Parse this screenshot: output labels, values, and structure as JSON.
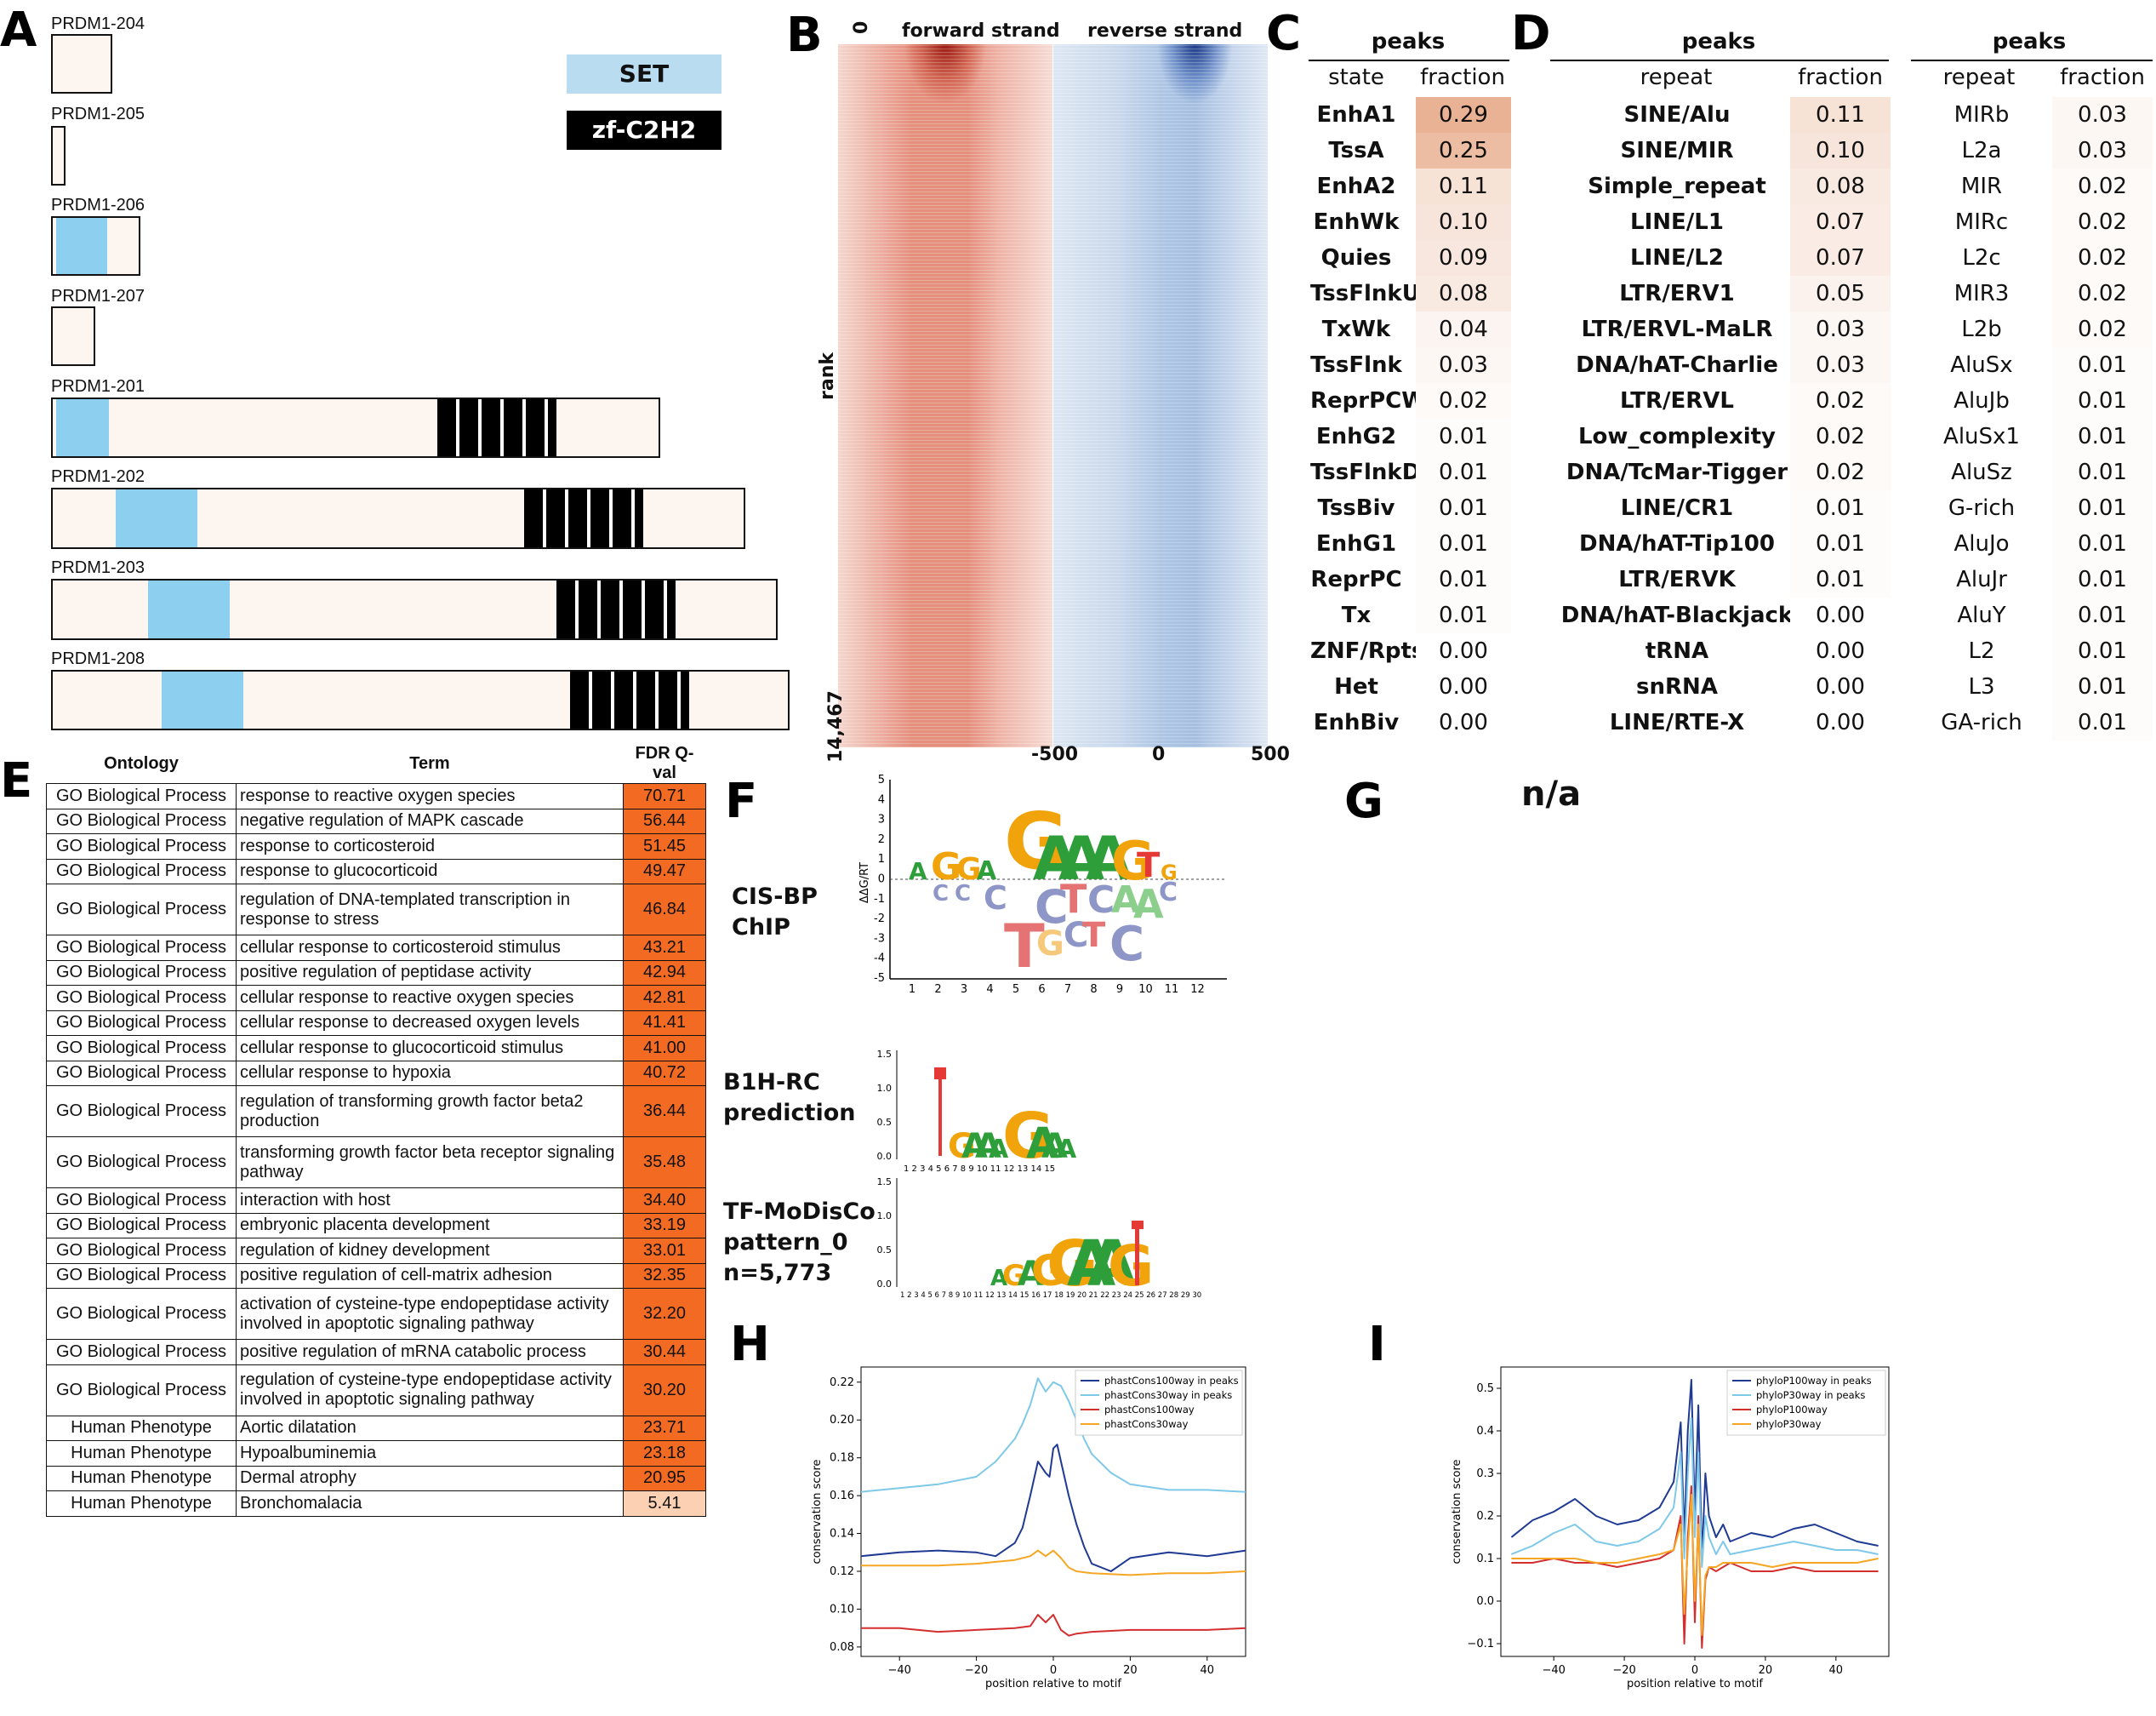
{
  "panels": {
    "a": "A",
    "b": "B",
    "c": "C",
    "d": "D",
    "e": "E",
    "f": "F",
    "g": "G",
    "h": "H",
    "i": "I"
  },
  "panel_a": {
    "legend": {
      "set": "SET",
      "zf": "zf-C2H2"
    },
    "colors": {
      "set": "#8ccfee",
      "zf": "#000000",
      "protein": "#fdf5f0"
    },
    "isoforms": [
      {
        "name": "PRDM1-204"
      },
      {
        "name": "PRDM1-205"
      },
      {
        "name": "PRDM1-206"
      },
      {
        "name": "PRDM1-207"
      },
      {
        "name": "PRDM1-201"
      },
      {
        "name": "PRDM1-202"
      },
      {
        "name": "PRDM1-203"
      },
      {
        "name": "PRDM1-208"
      }
    ]
  },
  "panel_b": {
    "forward": "forward strand",
    "reverse": "reverse strand",
    "ylabel": "rank",
    "ytop": "0",
    "ybottom": "14,467",
    "xticks": [
      "-500",
      "0",
      "500"
    ],
    "colors": {
      "forward": "#c0392b",
      "reverse": "#1f4e9c"
    }
  },
  "panel_c": {
    "title": "peaks",
    "col1": "state",
    "col2": "fraction",
    "rows": [
      {
        "label": "EnhA1",
        "value": "0.29"
      },
      {
        "label": "TssA",
        "value": "0.25"
      },
      {
        "label": "EnhA2",
        "value": "0.11"
      },
      {
        "label": "EnhWk",
        "value": "0.10"
      },
      {
        "label": "Quies",
        "value": "0.09"
      },
      {
        "label": "TssFlnkU",
        "value": "0.08"
      },
      {
        "label": "TxWk",
        "value": "0.04"
      },
      {
        "label": "TssFlnk",
        "value": "0.03"
      },
      {
        "label": "ReprPCWk",
        "value": "0.02"
      },
      {
        "label": "EnhG2",
        "value": "0.01"
      },
      {
        "label": "TssFlnkD",
        "value": "0.01"
      },
      {
        "label": "TssBiv",
        "value": "0.01"
      },
      {
        "label": "EnhG1",
        "value": "0.01"
      },
      {
        "label": "ReprPC",
        "value": "0.01"
      },
      {
        "label": "Tx",
        "value": "0.01"
      },
      {
        "label": "ZNF/Rpts",
        "value": "0.00"
      },
      {
        "label": "Het",
        "value": "0.00"
      },
      {
        "label": "EnhBiv",
        "value": "0.00"
      }
    ]
  },
  "panel_d": {
    "title1": "peaks",
    "col1a": "repeat",
    "col1b": "fraction",
    "title2": "peaks",
    "col2a": "repeat",
    "col2b": "fraction",
    "rows1": [
      {
        "label": "SINE/Alu",
        "value": "0.11"
      },
      {
        "label": "SINE/MIR",
        "value": "0.10"
      },
      {
        "label": "Simple_repeat",
        "value": "0.08"
      },
      {
        "label": "LINE/L1",
        "value": "0.07"
      },
      {
        "label": "LINE/L2",
        "value": "0.07"
      },
      {
        "label": "LTR/ERV1",
        "value": "0.05"
      },
      {
        "label": "LTR/ERVL-MaLR",
        "value": "0.03"
      },
      {
        "label": "DNA/hAT-Charlie",
        "value": "0.03"
      },
      {
        "label": "LTR/ERVL",
        "value": "0.02"
      },
      {
        "label": "Low_complexity",
        "value": "0.02"
      },
      {
        "label": "DNA/TcMar-Tigger",
        "value": "0.02"
      },
      {
        "label": "LINE/CR1",
        "value": "0.01"
      },
      {
        "label": "DNA/hAT-Tip100",
        "value": "0.01"
      },
      {
        "label": "LTR/ERVK",
        "value": "0.01"
      },
      {
        "label": "DNA/hAT-Blackjack",
        "value": "0.00"
      },
      {
        "label": "tRNA",
        "value": "0.00"
      },
      {
        "label": "snRNA",
        "value": "0.00"
      },
      {
        "label": "LINE/RTE-X",
        "value": "0.00"
      }
    ],
    "rows2": [
      {
        "label": "MIRb",
        "value": "0.03"
      },
      {
        "label": "L2a",
        "value": "0.03"
      },
      {
        "label": "MIR",
        "value": "0.02"
      },
      {
        "label": "MIRc",
        "value": "0.02"
      },
      {
        "label": "L2c",
        "value": "0.02"
      },
      {
        "label": "MIR3",
        "value": "0.02"
      },
      {
        "label": "L2b",
        "value": "0.02"
      },
      {
        "label": "AluSx",
        "value": "0.01"
      },
      {
        "label": "AluJb",
        "value": "0.01"
      },
      {
        "label": "AluSx1",
        "value": "0.01"
      },
      {
        "label": "AluSz",
        "value": "0.01"
      },
      {
        "label": "G-rich",
        "value": "0.01"
      },
      {
        "label": "AluJo",
        "value": "0.01"
      },
      {
        "label": "AluJr",
        "value": "0.01"
      },
      {
        "label": "AluY",
        "value": "0.01"
      },
      {
        "label": "L2",
        "value": "0.01"
      },
      {
        "label": "L3",
        "value": "0.01"
      },
      {
        "label": "GA-rich",
        "value": "0.01"
      }
    ]
  },
  "panel_e": {
    "headers": {
      "ontology": "Ontology",
      "term": "Term",
      "fdr": "FDR Q-val"
    },
    "rows": [
      {
        "ont": "GO Biological Process",
        "term": "response to reactive oxygen species",
        "fdr": "70.71"
      },
      {
        "ont": "GO Biological Process",
        "term": "negative regulation of MAPK cascade",
        "fdr": "56.44"
      },
      {
        "ont": "GO Biological Process",
        "term": "response to corticosteroid",
        "fdr": "51.45"
      },
      {
        "ont": "GO Biological Process",
        "term": "response to glucocorticoid",
        "fdr": "49.47"
      },
      {
        "ont": "GO Biological Process",
        "term": "regulation of DNA-templated transcription in response to stress",
        "fdr": "46.84"
      },
      {
        "ont": "GO Biological Process",
        "term": "cellular response to corticosteroid stimulus",
        "fdr": "43.21"
      },
      {
        "ont": "GO Biological Process",
        "term": "positive regulation of peptidase activity",
        "fdr": "42.94"
      },
      {
        "ont": "GO Biological Process",
        "term": "cellular response to reactive oxygen species",
        "fdr": "42.81"
      },
      {
        "ont": "GO Biological Process",
        "term": "cellular response to decreased oxygen levels",
        "fdr": "41.41"
      },
      {
        "ont": "GO Biological Process",
        "term": "cellular response to glucocorticoid stimulus",
        "fdr": "41.00"
      },
      {
        "ont": "GO Biological Process",
        "term": "cellular response to hypoxia",
        "fdr": "40.72"
      },
      {
        "ont": "GO Biological Process",
        "term": "regulation of transforming growth factor beta2 production",
        "fdr": "36.44"
      },
      {
        "ont": "GO Biological Process",
        "term": "transforming growth factor beta receptor signaling pathway",
        "fdr": "35.48"
      },
      {
        "ont": "GO Biological Process",
        "term": "interaction with host",
        "fdr": "34.40"
      },
      {
        "ont": "GO Biological Process",
        "term": "embryonic placenta development",
        "fdr": "33.19"
      },
      {
        "ont": "GO Biological Process",
        "term": "regulation of kidney development",
        "fdr": "33.01"
      },
      {
        "ont": "GO Biological Process",
        "term": "positive regulation of cell-matrix adhesion",
        "fdr": "32.35"
      },
      {
        "ont": "GO Biological Process",
        "term": "activation of cysteine-type endopeptidase activity involved in apoptotic signaling pathway",
        "fdr": "32.20"
      },
      {
        "ont": "GO Biological Process",
        "term": "positive regulation of mRNA catabolic process",
        "fdr": "30.44"
      },
      {
        "ont": "GO Biological Process",
        "term": "regulation of cysteine-type endopeptidase activity involved in apoptotic signaling pathway",
        "fdr": "30.20"
      },
      {
        "ont": "Human Phenotype",
        "term": "Aortic dilatation",
        "fdr": "23.71"
      },
      {
        "ont": "Human Phenotype",
        "term": "Hypoalbuminemia",
        "fdr": "23.18"
      },
      {
        "ont": "Human Phenotype",
        "term": "Dermal atrophy",
        "fdr": "20.95"
      },
      {
        "ont": "Human Phenotype",
        "term": "Bronchomalacia",
        "fdr": "5.41"
      }
    ]
  },
  "panel_f": {
    "label1a": "CIS-BP",
    "label1b": "ChIP",
    "label2a": "B1H-RC",
    "label2b": "prediction",
    "label3a": "TF-MoDisCo",
    "label3b": "pattern_0",
    "label3c": "n=5,773",
    "ylabel1": "ΔΔG/RT",
    "yticks1": [
      "5",
      "4",
      "3",
      "2",
      "1",
      "0",
      "-1",
      "-2",
      "-3",
      "-4",
      "-5"
    ],
    "xticks1": [
      "1",
      "2",
      "3",
      "4",
      "5",
      "6",
      "7",
      "8",
      "9",
      "10",
      "11",
      "12"
    ],
    "yticks2": [
      "1.5",
      "1.0",
      "0.5",
      "0.0"
    ],
    "xticks2": "1 2 3 4 5 6 7 8 9 10 11 12 13 14 15",
    "xticks3": "1 2 3 4 5 6 7 8 9 10 11 12 13 14 15 16 17 18 19 20 21 22 23 24 25 26 27 28 29 30"
  },
  "panel_g": {
    "text": "n/a"
  },
  "chart_data": [
    {
      "type": "line",
      "panel": "H",
      "xlabel": "position relative to motif",
      "ylabel": "conservation score",
      "xlim": [
        -50,
        50
      ],
      "ylim": [
        0.075,
        0.228
      ],
      "xticks": [
        -40,
        -20,
        0,
        20,
        40
      ],
      "yticks": [
        0.08,
        0.1,
        0.12,
        0.14,
        0.16,
        0.18,
        0.2,
        0.22
      ],
      "legend_position": "top-right",
      "series": [
        {
          "name": "phastCons100way in peaks",
          "color": "#1f3a93",
          "x": [
            -50,
            -40,
            -30,
            -20,
            -15,
            -10,
            -8,
            -6,
            -4,
            -2,
            -1,
            0,
            1,
            2,
            4,
            6,
            8,
            10,
            15,
            20,
            30,
            40,
            50
          ],
          "y": [
            0.128,
            0.13,
            0.131,
            0.13,
            0.128,
            0.135,
            0.143,
            0.16,
            0.178,
            0.172,
            0.17,
            0.185,
            0.187,
            0.178,
            0.16,
            0.145,
            0.133,
            0.124,
            0.12,
            0.127,
            0.13,
            0.128,
            0.131
          ]
        },
        {
          "name": "phastCons30way in peaks",
          "color": "#7ec8e8",
          "x": [
            -50,
            -40,
            -30,
            -20,
            -15,
            -10,
            -8,
            -6,
            -4,
            -2,
            0,
            2,
            4,
            6,
            8,
            10,
            15,
            20,
            30,
            40,
            50
          ],
          "y": [
            0.162,
            0.164,
            0.166,
            0.17,
            0.178,
            0.19,
            0.198,
            0.208,
            0.222,
            0.215,
            0.22,
            0.218,
            0.21,
            0.2,
            0.19,
            0.182,
            0.172,
            0.166,
            0.163,
            0.163,
            0.162
          ]
        },
        {
          "name": "phastCons100way",
          "color": "#d32f2f",
          "x": [
            -50,
            -40,
            -30,
            -20,
            -10,
            -6,
            -4,
            -2,
            0,
            2,
            4,
            6,
            10,
            20,
            30,
            40,
            50
          ],
          "y": [
            0.09,
            0.09,
            0.088,
            0.089,
            0.09,
            0.091,
            0.097,
            0.093,
            0.097,
            0.089,
            0.086,
            0.087,
            0.088,
            0.089,
            0.089,
            0.089,
            0.09
          ]
        },
        {
          "name": "phastCons30way",
          "color": "#f5a623",
          "x": [
            -50,
            -40,
            -30,
            -20,
            -10,
            -6,
            -4,
            -2,
            0,
            2,
            4,
            6,
            10,
            20,
            30,
            40,
            50
          ],
          "y": [
            0.123,
            0.123,
            0.123,
            0.124,
            0.126,
            0.128,
            0.131,
            0.128,
            0.131,
            0.127,
            0.122,
            0.12,
            0.119,
            0.118,
            0.119,
            0.119,
            0.12
          ]
        }
      ]
    },
    {
      "type": "line",
      "panel": "I",
      "xlabel": "position relative to motif",
      "ylabel": "conservation score",
      "xlim": [
        -55,
        55
      ],
      "ylim": [
        -0.13,
        0.55
      ],
      "xticks": [
        -40,
        -20,
        0,
        20,
        40
      ],
      "yticks": [
        -0.1,
        0.0,
        0.1,
        0.2,
        0.3,
        0.4,
        0.5
      ],
      "legend_position": "top-right",
      "series": [
        {
          "name": "phyloP100way in peaks",
          "color": "#1f3a93",
          "x": [
            -52,
            -46,
            -40,
            -34,
            -28,
            -22,
            -16,
            -10,
            -6,
            -4,
            -3,
            -2,
            -1,
            0,
            1,
            2,
            3,
            4,
            6,
            8,
            10,
            16,
            22,
            28,
            34,
            40,
            46,
            52
          ],
          "y": [
            0.15,
            0.19,
            0.21,
            0.24,
            0.2,
            0.18,
            0.19,
            0.22,
            0.28,
            0.42,
            0.15,
            0.4,
            0.52,
            0.2,
            0.46,
            0.1,
            0.3,
            0.2,
            0.15,
            0.18,
            0.14,
            0.16,
            0.15,
            0.17,
            0.18,
            0.16,
            0.14,
            0.13
          ]
        },
        {
          "name": "phyloP30way in peaks",
          "color": "#7ec8e8",
          "x": [
            -52,
            -46,
            -40,
            -34,
            -28,
            -22,
            -16,
            -10,
            -6,
            -4,
            -3,
            -2,
            -1,
            0,
            1,
            2,
            3,
            4,
            6,
            8,
            10,
            16,
            22,
            28,
            34,
            40,
            46,
            52
          ],
          "y": [
            0.11,
            0.13,
            0.16,
            0.18,
            0.14,
            0.13,
            0.14,
            0.17,
            0.22,
            0.35,
            0.1,
            0.3,
            0.43,
            0.15,
            0.35,
            0.08,
            0.2,
            0.15,
            0.11,
            0.14,
            0.11,
            0.12,
            0.13,
            0.14,
            0.13,
            0.12,
            0.12,
            0.11
          ]
        },
        {
          "name": "phyloP100way",
          "color": "#d32f2f",
          "x": [
            -52,
            -46,
            -40,
            -34,
            -28,
            -22,
            -16,
            -10,
            -6,
            -4,
            -3,
            -2,
            -1,
            0,
            1,
            2,
            3,
            4,
            6,
            8,
            10,
            16,
            22,
            28,
            34,
            40,
            46,
            52
          ],
          "y": [
            0.09,
            0.09,
            0.1,
            0.09,
            0.09,
            0.08,
            0.09,
            0.1,
            0.12,
            0.2,
            -0.1,
            0.15,
            0.27,
            -0.05,
            0.2,
            -0.11,
            0.05,
            0.08,
            0.07,
            0.08,
            0.09,
            0.07,
            0.07,
            0.08,
            0.07,
            0.07,
            0.07,
            0.07
          ]
        },
        {
          "name": "phyloP30way",
          "color": "#f5a623",
          "x": [
            -52,
            -46,
            -40,
            -34,
            -28,
            -22,
            -16,
            -10,
            -6,
            -4,
            -3,
            -2,
            -1,
            0,
            1,
            2,
            3,
            4,
            6,
            8,
            10,
            16,
            22,
            28,
            34,
            40,
            46,
            52
          ],
          "y": [
            0.1,
            0.1,
            0.1,
            0.1,
            0.09,
            0.09,
            0.1,
            0.11,
            0.12,
            0.18,
            -0.03,
            0.12,
            0.25,
            0.0,
            0.18,
            -0.08,
            0.06,
            0.08,
            0.08,
            0.09,
            0.09,
            0.09,
            0.08,
            0.09,
            0.09,
            0.09,
            0.09,
            0.1
          ]
        }
      ]
    }
  ]
}
